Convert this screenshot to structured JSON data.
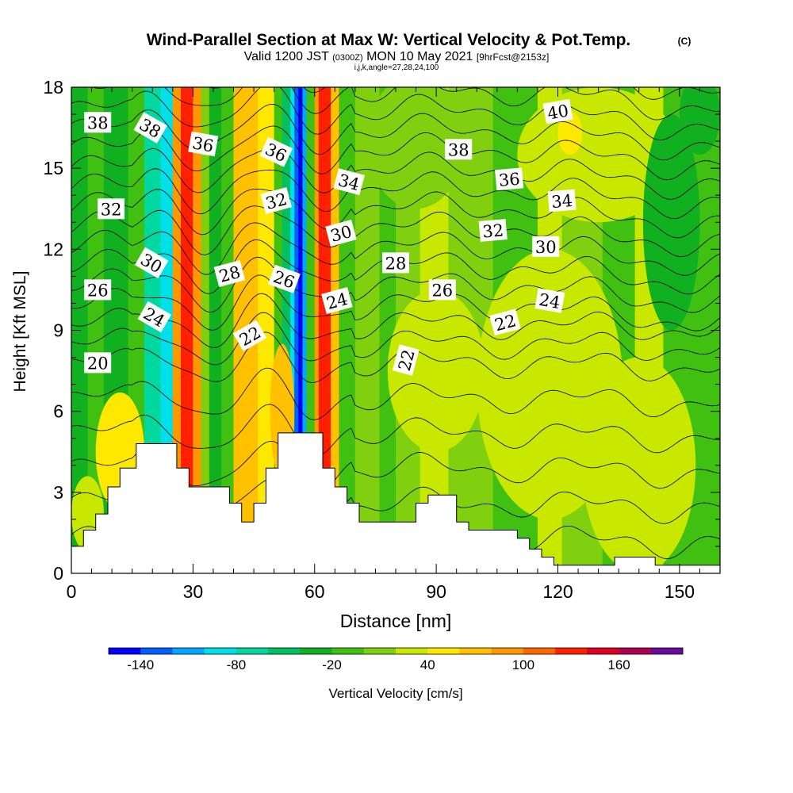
{
  "header": {
    "title": "Wind-Parallel Section at Max W: Vertical Velocity & Pot.Temp.",
    "copyright": "(C)",
    "valid_prefix": "Valid 1200 JST",
    "valid_utc": "(0300Z)",
    "valid_date": "MON 10 May 2021",
    "forecast": "[9hrFcst@2153z]",
    "indices": "i,j,k,angle=27,28,24,100"
  },
  "chart_data": {
    "type": "heatmap",
    "title": "Wind-Parallel Section at Max W: Vertical Velocity & Pot.Temp.",
    "xlabel": "Distance [nm]",
    "ylabel": "Height [Kft MSL]",
    "xlim": [
      0,
      160
    ],
    "ylim": [
      0,
      18
    ],
    "xticks": [
      0,
      30,
      60,
      90,
      120,
      150
    ],
    "yticks": [
      0,
      3,
      6,
      9,
      12,
      15,
      18
    ],
    "colorbar": {
      "label": "Vertical Velocity [cm/s]",
      "tick_labels": [
        "-140",
        "-80",
        "-20",
        "40",
        "100",
        "160"
      ],
      "tick_values": [
        -140,
        -80,
        -20,
        40,
        100,
        160
      ],
      "min": -160,
      "step": 20,
      "colors": [
        "#0000ff",
        "#0060ff",
        "#00a8ff",
        "#00e0e8",
        "#00d8a0",
        "#00c060",
        "#10b020",
        "#40c010",
        "#80d010",
        "#c8e800",
        "#ffe800",
        "#ffc000",
        "#ff9800",
        "#ff6800",
        "#ff2000",
        "#e00020",
        "#b00050",
        "#6a0a9a"
      ]
    },
    "columns": [
      {
        "x": [
          0,
          4
        ],
        "color": "#10b020"
      },
      {
        "x": [
          4,
          8
        ],
        "color": "#40c010"
      },
      {
        "x": [
          8,
          14
        ],
        "color": "#10b020"
      },
      {
        "x": [
          14,
          18
        ],
        "color": "#40c010"
      },
      {
        "x": [
          18,
          22
        ],
        "color": "#00d8a0"
      },
      {
        "x": [
          22,
          25
        ],
        "color": "#00e0e8"
      },
      {
        "x": [
          25,
          27
        ],
        "color": "#ff9800"
      },
      {
        "x": [
          27,
          30
        ],
        "color": "#ff2000"
      },
      {
        "x": [
          30,
          32
        ],
        "color": "#ff9800"
      },
      {
        "x": [
          32,
          34
        ],
        "color": "#80d010"
      },
      {
        "x": [
          34,
          37
        ],
        "color": "#10b020"
      },
      {
        "x": [
          37,
          40
        ],
        "color": "#40c010"
      },
      {
        "x": [
          40,
          46
        ],
        "color": "#ffc000"
      },
      {
        "x": [
          46,
          50
        ],
        "color": "#ffe800"
      },
      {
        "x": [
          50,
          52
        ],
        "color": "#40c010"
      },
      {
        "x": [
          52,
          54
        ],
        "color": "#00c060"
      },
      {
        "x": [
          54,
          55
        ],
        "color": "#00e0e8"
      },
      {
        "x": [
          55,
          56
        ],
        "color": "#0060ff"
      },
      {
        "x": [
          56,
          57
        ],
        "color": "#0000ff"
      },
      {
        "x": [
          57,
          58
        ],
        "color": "#00a8ff"
      },
      {
        "x": [
          58,
          60
        ],
        "color": "#40c010"
      },
      {
        "x": [
          60,
          61
        ],
        "color": "#ff9800"
      },
      {
        "x": [
          61,
          64
        ],
        "color": "#ff2000"
      },
      {
        "x": [
          64,
          66
        ],
        "color": "#ffc000"
      },
      {
        "x": [
          66,
          70
        ],
        "color": "#40c010"
      },
      {
        "x": [
          70,
          76
        ],
        "color": "#80d010"
      },
      {
        "x": [
          76,
          80
        ],
        "color": "#40c010"
      },
      {
        "x": [
          80,
          86
        ],
        "color": "#80d010"
      },
      {
        "x": [
          86,
          93
        ],
        "color": "#c8e800"
      },
      {
        "x": [
          93,
          104
        ],
        "color": "#80d010"
      },
      {
        "x": [
          104,
          115
        ],
        "color": "#40c010"
      },
      {
        "x": [
          115,
          121
        ],
        "color": "#c8e800"
      },
      {
        "x": [
          121,
          131
        ],
        "color": "#80d010"
      },
      {
        "x": [
          131,
          139
        ],
        "color": "#40c010"
      },
      {
        "x": [
          139,
          146
        ],
        "color": "#c8e800"
      },
      {
        "x": [
          146,
          160
        ],
        "color": "#40c010"
      }
    ],
    "blobs": [
      {
        "x": 12,
        "y": 4.5,
        "rx": 6,
        "ry": 2.2,
        "color": "#ffe800"
      },
      {
        "x": 4,
        "y": 2.2,
        "rx": 4,
        "ry": 1.4,
        "color": "#c8e800"
      },
      {
        "x": 52,
        "y": 6,
        "rx": 3,
        "ry": 2.5,
        "color": "#ffc000"
      },
      {
        "x": 90,
        "y": 7.5,
        "rx": 12,
        "ry": 3,
        "color": "#c8e800"
      },
      {
        "x": 118,
        "y": 7,
        "rx": 18,
        "ry": 5,
        "color": "#c8e800"
      },
      {
        "x": 140,
        "y": 4,
        "rx": 14,
        "ry": 4,
        "color": "#c8e800"
      },
      {
        "x": 130,
        "y": 15.5,
        "rx": 20,
        "ry": 2.5,
        "color": "#c8e800"
      },
      {
        "x": 123,
        "y": 16.3,
        "rx": 3,
        "ry": 0.8,
        "color": "#ffe800"
      },
      {
        "x": 85,
        "y": 16,
        "rx": 12,
        "ry": 2.5,
        "color": "#80d010"
      },
      {
        "x": 148,
        "y": 13,
        "rx": 7,
        "ry": 4,
        "color": "#10b020"
      },
      {
        "x": 155,
        "y": 17,
        "rx": 5,
        "ry": 1.5,
        "color": "#10b020"
      }
    ],
    "terrain": [
      [
        0,
        1
      ],
      [
        3,
        1
      ],
      [
        3,
        1.6
      ],
      [
        6,
        1.6
      ],
      [
        6,
        2.2
      ],
      [
        9,
        2.2
      ],
      [
        9,
        3.2
      ],
      [
        12,
        3.2
      ],
      [
        12,
        3.9
      ],
      [
        16,
        3.9
      ],
      [
        16,
        4.8
      ],
      [
        26,
        4.8
      ],
      [
        26,
        3.9
      ],
      [
        29,
        3.9
      ],
      [
        29,
        3.2
      ],
      [
        39,
        3.2
      ],
      [
        39,
        2.6
      ],
      [
        42,
        2.6
      ],
      [
        42,
        1.9
      ],
      [
        45,
        1.9
      ],
      [
        45,
        2.6
      ],
      [
        48,
        2.6
      ],
      [
        48,
        3.9
      ],
      [
        51,
        3.9
      ],
      [
        51,
        5.2
      ],
      [
        62,
        5.2
      ],
      [
        62,
        3.9
      ],
      [
        65,
        3.9
      ],
      [
        65,
        3.2
      ],
      [
        68,
        3.2
      ],
      [
        68,
        2.6
      ],
      [
        71,
        2.6
      ],
      [
        71,
        1.9
      ],
      [
        85,
        1.9
      ],
      [
        85,
        2.6
      ],
      [
        88,
        2.6
      ],
      [
        88,
        2.9
      ],
      [
        95,
        2.9
      ],
      [
        95,
        1.9
      ],
      [
        98,
        1.9
      ],
      [
        98,
        1.6
      ],
      [
        110,
        1.6
      ],
      [
        110,
        1.3
      ],
      [
        113,
        1.3
      ],
      [
        113,
        0.9
      ],
      [
        116,
        0.9
      ],
      [
        116,
        0.6
      ],
      [
        119,
        0.6
      ],
      [
        119,
        0.3
      ],
      [
        134,
        0.3
      ],
      [
        134,
        0.6
      ],
      [
        144,
        0.6
      ],
      [
        144,
        0.3
      ],
      [
        160,
        0.3
      ],
      [
        160,
        0
      ]
    ],
    "contour_labels": [
      {
        "text": "38",
        "x": 6.5,
        "y": 16.7,
        "angle": 0
      },
      {
        "text": "38",
        "x": 19.5,
        "y": 16.5,
        "angle": 30
      },
      {
        "text": "36",
        "x": 32.5,
        "y": 15.9,
        "angle": 10
      },
      {
        "text": "36",
        "x": 50.5,
        "y": 15.6,
        "angle": 25
      },
      {
        "text": "34",
        "x": 68.5,
        "y": 14.5,
        "angle": 15
      },
      {
        "text": "38",
        "x": 95.5,
        "y": 15.7,
        "angle": 0
      },
      {
        "text": "36",
        "x": 108,
        "y": 14.6,
        "angle": -5
      },
      {
        "text": "40",
        "x": 120,
        "y": 17.1,
        "angle": -10
      },
      {
        "text": "34",
        "x": 121,
        "y": 13.8,
        "angle": -5
      },
      {
        "text": "32",
        "x": 9.8,
        "y": 13.5,
        "angle": 0
      },
      {
        "text": "32",
        "x": 50.5,
        "y": 13.8,
        "angle": -15
      },
      {
        "text": "30",
        "x": 19.8,
        "y": 11.5,
        "angle": 30
      },
      {
        "text": "30",
        "x": 66.5,
        "y": 12.6,
        "angle": -15
      },
      {
        "text": "32",
        "x": 104,
        "y": 12.7,
        "angle": -5
      },
      {
        "text": "30",
        "x": 117,
        "y": 12.1,
        "angle": 0
      },
      {
        "text": "28",
        "x": 39,
        "y": 11.1,
        "angle": -15
      },
      {
        "text": "26",
        "x": 52.5,
        "y": 10.9,
        "angle": 20
      },
      {
        "text": "28",
        "x": 80,
        "y": 11.5,
        "angle": 0
      },
      {
        "text": "26",
        "x": 6.5,
        "y": 10.5,
        "angle": 0
      },
      {
        "text": "26",
        "x": 91.5,
        "y": 10.5,
        "angle": 0
      },
      {
        "text": "24",
        "x": 20.5,
        "y": 9.5,
        "angle": 30
      },
      {
        "text": "24",
        "x": 65.5,
        "y": 10.1,
        "angle": -15
      },
      {
        "text": "24",
        "x": 118,
        "y": 10.1,
        "angle": 10
      },
      {
        "text": "22",
        "x": 107,
        "y": 9.3,
        "angle": -15
      },
      {
        "text": "22",
        "x": 44,
        "y": 8.8,
        "angle": -30
      },
      {
        "text": "22",
        "x": 82.5,
        "y": 7.9,
        "angle": -75
      },
      {
        "text": "20",
        "x": 6.5,
        "y": 7.8,
        "angle": 0
      }
    ],
    "contour_levels": {
      "min": 17,
      "max": 42,
      "step": 1
    }
  }
}
